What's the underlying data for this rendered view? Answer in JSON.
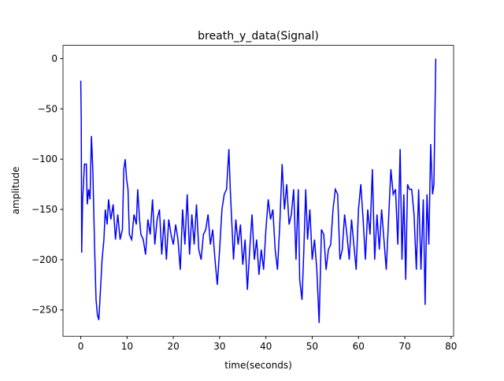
{
  "chart_data": {
    "type": "line",
    "title": "breath_y_data(Signal)",
    "x_label": "time(seconds)",
    "y_label": "amplitude",
    "x": [
      0,
      0.1,
      0.2,
      0.4,
      0.8,
      1.2,
      1.4,
      1.7,
      2,
      2.3,
      2.6,
      3,
      3.3,
      3.6,
      3.9,
      4.2,
      4.6,
      5,
      5.3,
      5.7,
      6,
      6.5,
      7,
      7.5,
      8,
      8.5,
      9,
      9.3,
      9.6,
      9.9,
      10.2,
      10.5,
      11,
      11.5,
      12,
      12.3,
      12.7,
      13,
      13.5,
      14,
      14.5,
      15,
      15.5,
      16,
      16.5,
      17,
      17.5,
      18,
      18.5,
      19,
      19.5,
      20,
      20.5,
      21,
      21.5,
      22,
      22.5,
      23,
      23.5,
      24,
      24.5,
      25,
      25.5,
      26,
      26.5,
      27,
      27.5,
      28,
      28.5,
      29,
      29.5,
      30,
      30.5,
      31,
      31.5,
      32,
      32.3,
      32.7,
      33,
      33.5,
      34,
      34.5,
      35,
      35.5,
      36,
      36.5,
      37,
      37.5,
      38,
      38.5,
      39,
      39.5,
      40,
      40.5,
      41,
      41.5,
      42,
      42.5,
      43,
      43.5,
      44,
      44.5,
      45,
      45.5,
      46,
      46.5,
      47,
      47.3,
      47.8,
      48.2,
      48.6,
      49,
      49.5,
      50,
      50.5,
      51,
      51.5,
      52,
      52.5,
      53,
      53.5,
      54,
      54.5,
      55,
      55.5,
      56,
      56.5,
      57,
      57.5,
      58,
      58.5,
      59,
      59.5,
      60,
      60.5,
      61,
      61.5,
      62,
      62.5,
      63,
      63.5,
      64,
      64.5,
      65,
      65.5,
      66,
      66.5,
      67,
      67.5,
      68,
      68.5,
      69,
      69.4,
      69.8,
      70.2,
      70.6,
      71,
      71.5,
      72,
      72.5,
      73,
      73.5,
      74,
      74.4,
      74.8,
      75.2,
      75.6,
      76,
      76.3,
      76.5,
      76.7
    ],
    "series": [
      {
        "name": "breath_y_data",
        "color": "#0000ff",
        "values": [
          -22,
          -60,
          -193,
          -140,
          -105,
          -105,
          -145,
          -130,
          -140,
          -77,
          -110,
          -190,
          -240,
          -255,
          -260,
          -235,
          -200,
          -180,
          -150,
          -165,
          -140,
          -160,
          -145,
          -180,
          -155,
          -180,
          -170,
          -110,
          -100,
          -120,
          -130,
          -175,
          -180,
          -155,
          -165,
          -130,
          -160,
          -175,
          -180,
          -195,
          -160,
          -175,
          -140,
          -185,
          -160,
          -150,
          -195,
          -160,
          -200,
          -160,
          -175,
          -185,
          -165,
          -180,
          -210,
          -150,
          -185,
          -135,
          -195,
          -155,
          -185,
          -145,
          -190,
          -200,
          -175,
          -170,
          -155,
          -185,
          -170,
          -200,
          -225,
          -190,
          -150,
          -135,
          -130,
          -90,
          -130,
          -170,
          -200,
          -160,
          -185,
          -165,
          -205,
          -180,
          -230,
          -190,
          -155,
          -200,
          -180,
          -215,
          -190,
          -210,
          -170,
          -140,
          -160,
          -150,
          -190,
          -210,
          -165,
          -105,
          -150,
          -125,
          -165,
          -155,
          -130,
          -200,
          -130,
          -220,
          -240,
          -190,
          -130,
          -180,
          -150,
          -200,
          -180,
          -210,
          -263,
          -170,
          -175,
          -210,
          -190,
          -185,
          -150,
          -130,
          -135,
          -200,
          -190,
          -155,
          -175,
          -200,
          -160,
          -185,
          -210,
          -150,
          -125,
          -160,
          -200,
          -150,
          -175,
          -110,
          -200,
          -155,
          -190,
          -150,
          -180,
          -210,
          -160,
          -110,
          -135,
          -130,
          -185,
          -90,
          -200,
          -135,
          -220,
          -125,
          -130,
          -130,
          -155,
          -210,
          -130,
          -210,
          -140,
          -245,
          -135,
          -185,
          -85,
          -135,
          -125,
          -60,
          0
        ]
      }
    ],
    "xlim": [
      -3.84,
      80.55
    ],
    "ylim": [
      -276.2,
      13.2
    ],
    "xticks": [
      0,
      10,
      20,
      30,
      40,
      50,
      60,
      70,
      80
    ],
    "yticks": [
      {
        "value": -250,
        "label": "−250"
      },
      {
        "value": -200,
        "label": "−200"
      },
      {
        "value": -150,
        "label": "−150"
      },
      {
        "value": -100,
        "label": "−100"
      },
      {
        "value": -50,
        "label": "−50"
      },
      0
    ],
    "grid": false
  }
}
